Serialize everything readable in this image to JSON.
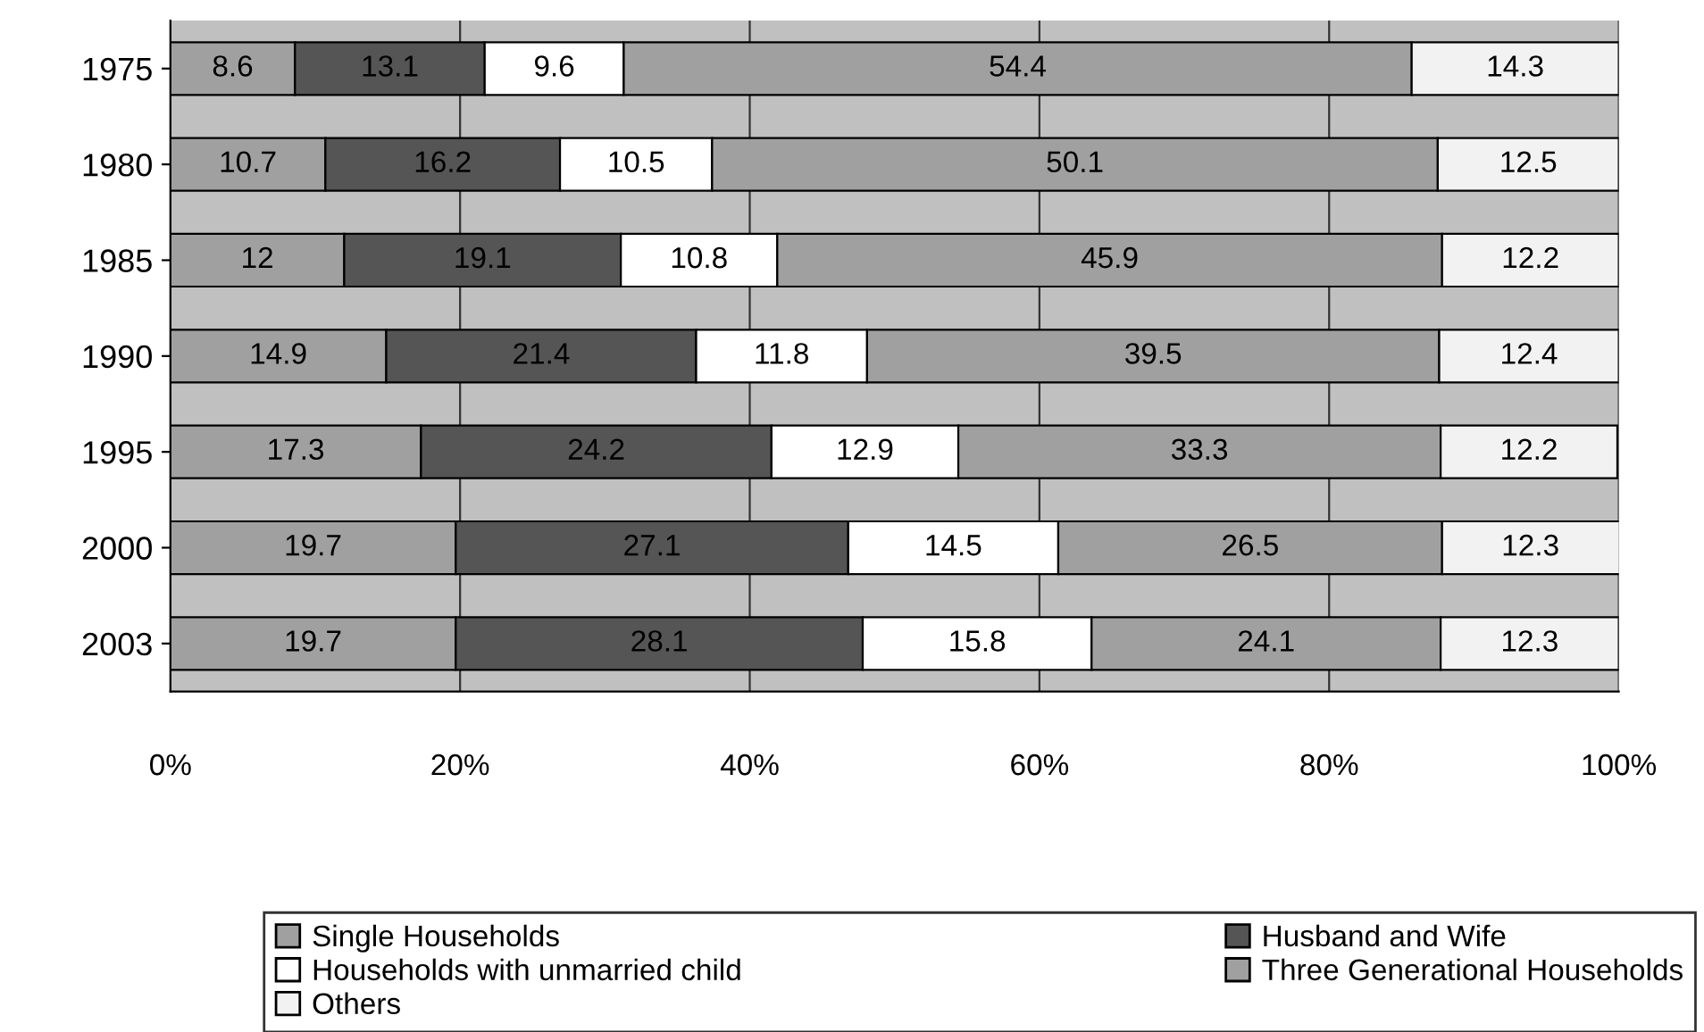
{
  "chart_data": {
    "type": "bar",
    "orientation": "horizontal",
    "stacked": true,
    "categories": [
      "1975",
      "1980",
      "1985",
      "1990",
      "1995",
      "2000",
      "2003"
    ],
    "series": [
      {
        "name": "Single Households",
        "color": "#a0a0a0",
        "values": [
          8.6,
          10.7,
          12,
          14.9,
          17.3,
          19.7,
          19.7
        ]
      },
      {
        "name": "Husband and Wife",
        "color": "#555555",
        "values": [
          13.1,
          16.2,
          19.1,
          21.4,
          24.2,
          27.1,
          28.1
        ]
      },
      {
        "name": "Households with unmarried child",
        "color": "#ffffff",
        "values": [
          9.6,
          10.5,
          10.8,
          11.8,
          12.9,
          14.5,
          15.8
        ]
      },
      {
        "name": "Three Generational Households",
        "color": "#a0a0a0",
        "values": [
          54.4,
          50.1,
          45.9,
          39.5,
          33.3,
          26.5,
          24.1
        ]
      },
      {
        "name": "Others",
        "color": "#f2f2f2",
        "values": [
          14.3,
          12.5,
          12.2,
          12.4,
          12.2,
          12.3,
          12.3
        ]
      }
    ],
    "xlim": [
      0,
      100
    ],
    "xticks": [
      {
        "value": 0,
        "label": "0%"
      },
      {
        "value": 20,
        "label": "20%"
      },
      {
        "value": 40,
        "label": "40%"
      },
      {
        "value": 60,
        "label": "60%"
      },
      {
        "value": 80,
        "label": "80%"
      },
      {
        "value": 100,
        "label": "100%"
      }
    ],
    "grid": "x",
    "legend": "bottom",
    "data_labels": true
  }
}
